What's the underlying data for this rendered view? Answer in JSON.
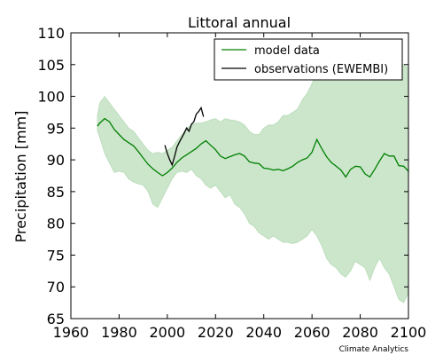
{
  "chart_data": {
    "type": "line",
    "title": "Littoral annual",
    "xlabel": "",
    "ylabel": "Precipitation [mm]",
    "xlim": [
      1960,
      2100
    ],
    "ylim": [
      65,
      110
    ],
    "x_ticks": [
      1960,
      1980,
      2000,
      2020,
      2040,
      2060,
      2080,
      2100
    ],
    "y_ticks": [
      65,
      70,
      75,
      80,
      85,
      90,
      95,
      100,
      105,
      110
    ],
    "x_tick_labels": [
      "1960",
      "1980",
      "2000",
      "2020",
      "2040",
      "2060",
      "2080",
      "2100"
    ],
    "y_tick_labels": [
      "65",
      "70",
      "75",
      "80",
      "85",
      "90",
      "95",
      "100",
      "105",
      "110"
    ],
    "grid": false,
    "legend_position": "top-right",
    "series": [
      {
        "name": "model data",
        "color": "#008000",
        "x": [
          1971,
          1972,
          1974,
          1976,
          1978,
          1980,
          1982,
          1984,
          1986,
          1988,
          1990,
          1992,
          1994,
          1996,
          1998,
          2000,
          2002,
          2004,
          2006,
          2008,
          2010,
          2012,
          2014,
          2016,
          2018,
          2020,
          2022,
          2024,
          2026,
          2028,
          2030,
          2032,
          2034,
          2036,
          2038,
          2040,
          2042,
          2044,
          2046,
          2048,
          2050,
          2052,
          2054,
          2056,
          2058,
          2060,
          2062,
          2064,
          2066,
          2068,
          2070,
          2072,
          2074,
          2076,
          2078,
          2080,
          2082,
          2084,
          2086,
          2088,
          2090,
          2092,
          2094,
          2096,
          2098,
          2100
        ],
        "values": [
          95.3,
          95.8,
          96.5,
          96.0,
          94.8,
          94.0,
          93.2,
          92.7,
          92.2,
          91.3,
          90.3,
          89.3,
          88.6,
          88.0,
          87.5,
          88.0,
          88.7,
          89.6,
          90.3,
          90.8,
          91.3,
          91.8,
          92.5,
          93.0,
          92.3,
          91.6,
          90.6,
          90.2,
          90.5,
          90.8,
          91.0,
          90.6,
          89.7,
          89.5,
          89.4,
          88.7,
          88.6,
          88.4,
          88.5,
          88.3,
          88.6,
          89.0,
          89.6,
          90.0,
          90.3,
          91.2,
          93.2,
          91.8,
          90.5,
          89.6,
          89.0,
          88.4,
          87.3,
          88.5,
          89.0,
          88.9,
          87.8,
          87.3,
          88.5,
          89.8,
          91.0,
          90.6,
          90.6,
          89.1,
          89.0,
          88.2
        ]
      },
      {
        "name": "observations (EWEMBI)",
        "color": "#000000",
        "x": [
          1999,
          2000,
          2001,
          2002,
          2003,
          2004,
          2005,
          2006,
          2007,
          2008,
          2009,
          2010,
          2011,
          2012,
          2013,
          2014,
          2015
        ],
        "values": [
          92.3,
          91.0,
          90.0,
          89.2,
          90.5,
          92.0,
          92.8,
          93.5,
          94.2,
          95.0,
          94.5,
          95.6,
          96.0,
          97.2,
          97.6,
          98.2,
          96.8
        ]
      }
    ],
    "bands": [
      {
        "series": "model data",
        "color": "#008000",
        "opacity": 0.2,
        "x": [
          1971,
          1972,
          1974,
          1976,
          1978,
          1980,
          1982,
          1984,
          1986,
          1988,
          1990,
          1992,
          1994,
          1996,
          1998,
          2000,
          2002,
          2004,
          2006,
          2008,
          2010,
          2012,
          2014,
          2016,
          2018,
          2020,
          2022,
          2024,
          2026,
          2028,
          2030,
          2032,
          2034,
          2036,
          2038,
          2040,
          2042,
          2044,
          2046,
          2048,
          2050,
          2052,
          2054,
          2056,
          2058,
          2060,
          2062,
          2064,
          2066,
          2068,
          2070,
          2072,
          2074,
          2076,
          2078,
          2080,
          2082,
          2084,
          2086,
          2088,
          2090,
          2092,
          2094,
          2096,
          2098,
          2100
        ],
        "lower": [
          94.5,
          93.5,
          91.0,
          89.5,
          88.0,
          88.2,
          88.0,
          87.0,
          86.5,
          86.2,
          86.0,
          85.0,
          83.0,
          82.5,
          84.0,
          85.5,
          87.0,
          88.0,
          88.2,
          88.0,
          88.5,
          87.5,
          87.0,
          86.0,
          85.5,
          86.0,
          85.0,
          84.0,
          84.5,
          83.0,
          82.5,
          81.5,
          80.0,
          79.5,
          78.5,
          78.0,
          77.5,
          78.0,
          77.5,
          77.0,
          77.0,
          76.8,
          77.0,
          77.5,
          78.0,
          79.0,
          78.0,
          76.5,
          74.5,
          73.5,
          73.0,
          72.0,
          71.5,
          72.5,
          74.0,
          73.5,
          73.0,
          71.0,
          73.0,
          74.5,
          73.0,
          72.0,
          70.0,
          68.0,
          67.5,
          69.0
        ],
        "upper": [
          97.0,
          99.0,
          100.0,
          99.0,
          98.0,
          97.0,
          96.0,
          95.0,
          94.5,
          93.5,
          92.5,
          91.5,
          91.0,
          91.2,
          91.0,
          91.5,
          92.0,
          93.0,
          94.0,
          95.0,
          95.5,
          95.8,
          95.8,
          96.0,
          96.3,
          96.5,
          96.0,
          96.5,
          96.3,
          96.2,
          96.0,
          95.5,
          94.5,
          94.0,
          94.0,
          95.0,
          95.5,
          95.5,
          96.0,
          97.0,
          97.0,
          97.5,
          98.0,
          99.5,
          100.5,
          102.0,
          104.0,
          105.5,
          106.0,
          105.0,
          105.5,
          105.0,
          104.5,
          105.0,
          106.0,
          105.0,
          106.0,
          105.5,
          105.5,
          106.0,
          105.0,
          105.5,
          106.0,
          105.5,
          105.0,
          104.5
        ]
      }
    ],
    "annotations": [
      "Climate Analytics"
    ]
  }
}
